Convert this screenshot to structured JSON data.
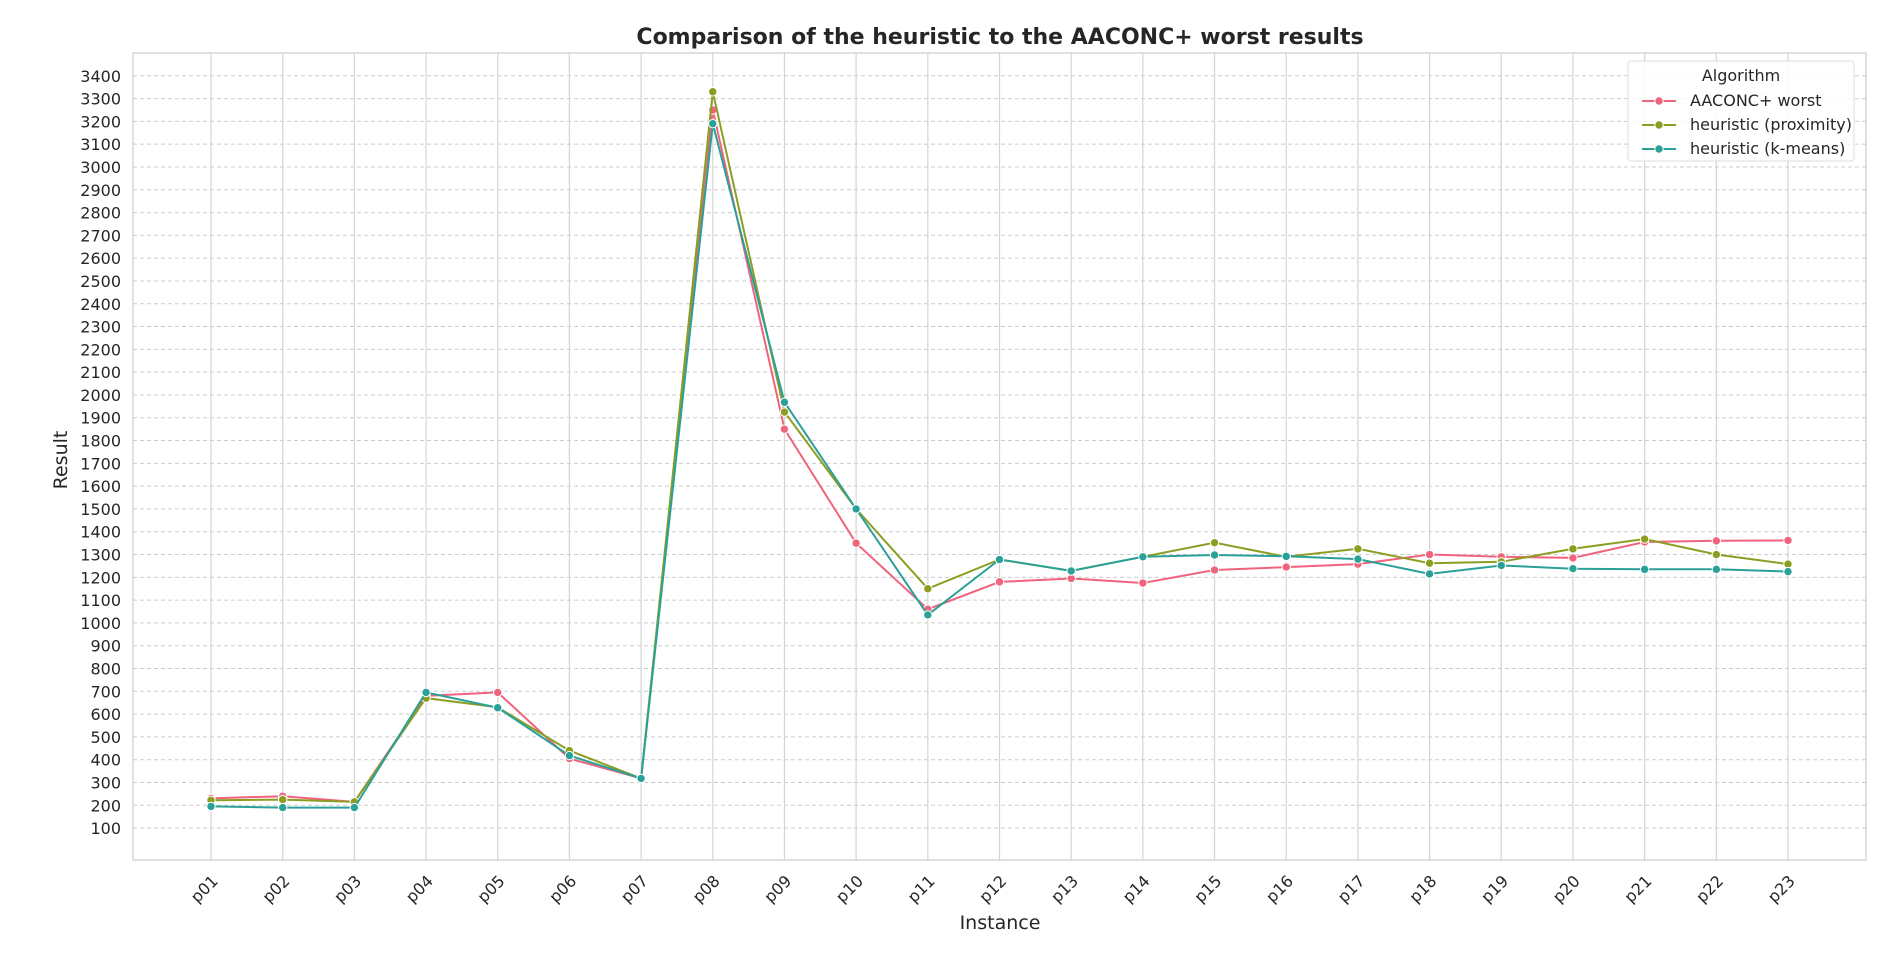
{
  "chart_data": {
    "type": "line",
    "title": "Comparison of the heuristic to the AACONC+ worst results",
    "xlabel": "Instance",
    "ylabel": "Result",
    "categories": [
      "p01",
      "p02",
      "p03",
      "p04",
      "p05",
      "p06",
      "p07",
      "p08",
      "p09",
      "p10",
      "p11",
      "p12",
      "p13",
      "p14",
      "p15",
      "p16",
      "p17",
      "p18",
      "p19",
      "p20",
      "p21",
      "p22",
      "p23"
    ],
    "yticks": [
      100,
      200,
      300,
      400,
      500,
      600,
      700,
      800,
      900,
      1000,
      1100,
      1200,
      1300,
      1400,
      1500,
      1600,
      1700,
      1800,
      1900,
      2000,
      2100,
      2200,
      2300,
      2400,
      2500,
      2600,
      2700,
      2800,
      2900,
      3000,
      3100,
      3200,
      3300,
      3400
    ],
    "ylim": [
      -40,
      3500
    ],
    "grid": true,
    "legend": {
      "title": "Algorithm",
      "placement": "top-right"
    },
    "series": [
      {
        "name": "AACONC+ worst",
        "color": "#f0637d",
        "values": [
          230,
          240,
          215,
          680,
          695,
          405,
          318,
          3250,
          1850,
          1350,
          1060,
          1180,
          1195,
          1175,
          1232,
          1245,
          1258,
          1300,
          1290,
          1285,
          1355,
          1360,
          1362
        ]
      },
      {
        "name": "heuristic (proximity)",
        "color": "#8c9e22",
        "values": [
          222,
          225,
          215,
          670,
          630,
          440,
          318,
          3330,
          1925,
          1500,
          1150,
          1278,
          1228,
          1290,
          1352,
          1290,
          1325,
          1262,
          1268,
          1325,
          1368,
          1300,
          1258
        ]
      },
      {
        "name": "heuristic (k-means)",
        "color": "#2aa198",
        "values": [
          195,
          190,
          190,
          695,
          628,
          418,
          318,
          3190,
          1968,
          1500,
          1035,
          1278,
          1228,
          1290,
          1298,
          1292,
          1280,
          1215,
          1252,
          1238,
          1235,
          1235,
          1225
        ]
      }
    ]
  }
}
